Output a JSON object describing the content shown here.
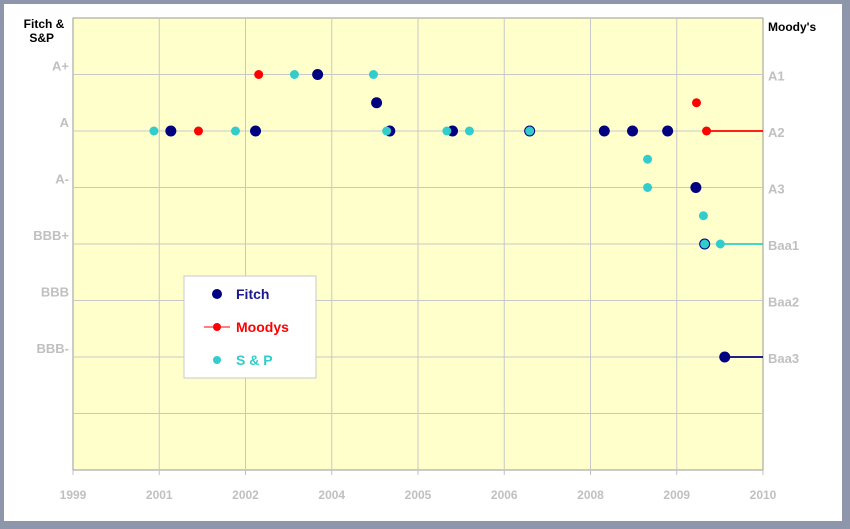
{
  "chart_data": {
    "type": "scatter",
    "left_axis_title": "Fitch & S&P",
    "right_axis_title": "Moody's",
    "x_axis": {
      "range": [
        1999.99,
        2010.99
      ],
      "ticks": [
        1999.99,
        2001.365,
        2002.74,
        2004.115,
        2005.49,
        2006.865,
        2008.24,
        2009.615,
        2010.99
      ],
      "tick_labels": [
        "1999",
        "2001",
        "2002",
        "2004",
        "2005",
        "2006",
        "2008",
        "2009",
        "2010"
      ]
    },
    "y_axis": {
      "range": [
        0,
        8
      ],
      "ticks": [
        1,
        2,
        3,
        4,
        5,
        6,
        7
      ],
      "left_tick_labels": {
        "7": "A+",
        "6": "A",
        "5": "A-",
        "4": "BBB+",
        "3": "BBB",
        "2": "BBB-"
      },
      "right_tick_labels": {
        "7": "A1",
        "6": "A2",
        "5": "A3",
        "4": "Baa1",
        "3": "Baa2",
        "2": "Baa3"
      }
    },
    "grid": true,
    "background": "#ffffcc",
    "legend": {
      "placement": "lower-left-center",
      "entries": [
        "Fitch",
        "Moodys",
        "S & P"
      ]
    },
    "series": [
      {
        "name": "Fitch",
        "color": "#000080",
        "text_color": "#1a1a8c",
        "marker": "large-circle",
        "extend_last": true,
        "points": [
          [
            2001.55,
            6
          ],
          [
            2002.9,
            6
          ],
          [
            2003.89,
            7
          ],
          [
            2004.83,
            6.5
          ],
          [
            2005.04,
            6
          ],
          [
            2006.04,
            6
          ],
          [
            2007.27,
            6
          ],
          [
            2008.46,
            6
          ],
          [
            2008.91,
            6
          ],
          [
            2009.47,
            6
          ],
          [
            2009.92,
            5
          ],
          [
            2010.06,
            4
          ],
          [
            2010.38,
            2
          ]
        ]
      },
      {
        "name": "Moodys",
        "color": "#ff0000",
        "text_color": "#ff0000",
        "marker": "circle",
        "extend_last": true,
        "points": [
          [
            2001.99,
            6
          ],
          [
            2002.95,
            7
          ],
          [
            2009.93,
            6.5
          ],
          [
            2010.09,
            6
          ]
        ]
      },
      {
        "name": "S & P",
        "color": "#33cccc",
        "text_color": "#33cccc",
        "marker": "circle",
        "extend_last": true,
        "points": [
          [
            2001.28,
            6
          ],
          [
            2002.58,
            6
          ],
          [
            2003.52,
            7
          ],
          [
            2004.78,
            7
          ],
          [
            2004.99,
            6
          ],
          [
            2005.95,
            6
          ],
          [
            2006.31,
            6
          ],
          [
            2007.27,
            6
          ],
          [
            2009.15,
            5.5
          ],
          [
            2009.15,
            5
          ],
          [
            2010.04,
            4.5
          ],
          [
            2010.06,
            4
          ],
          [
            2010.31,
            4
          ]
        ]
      }
    ]
  }
}
